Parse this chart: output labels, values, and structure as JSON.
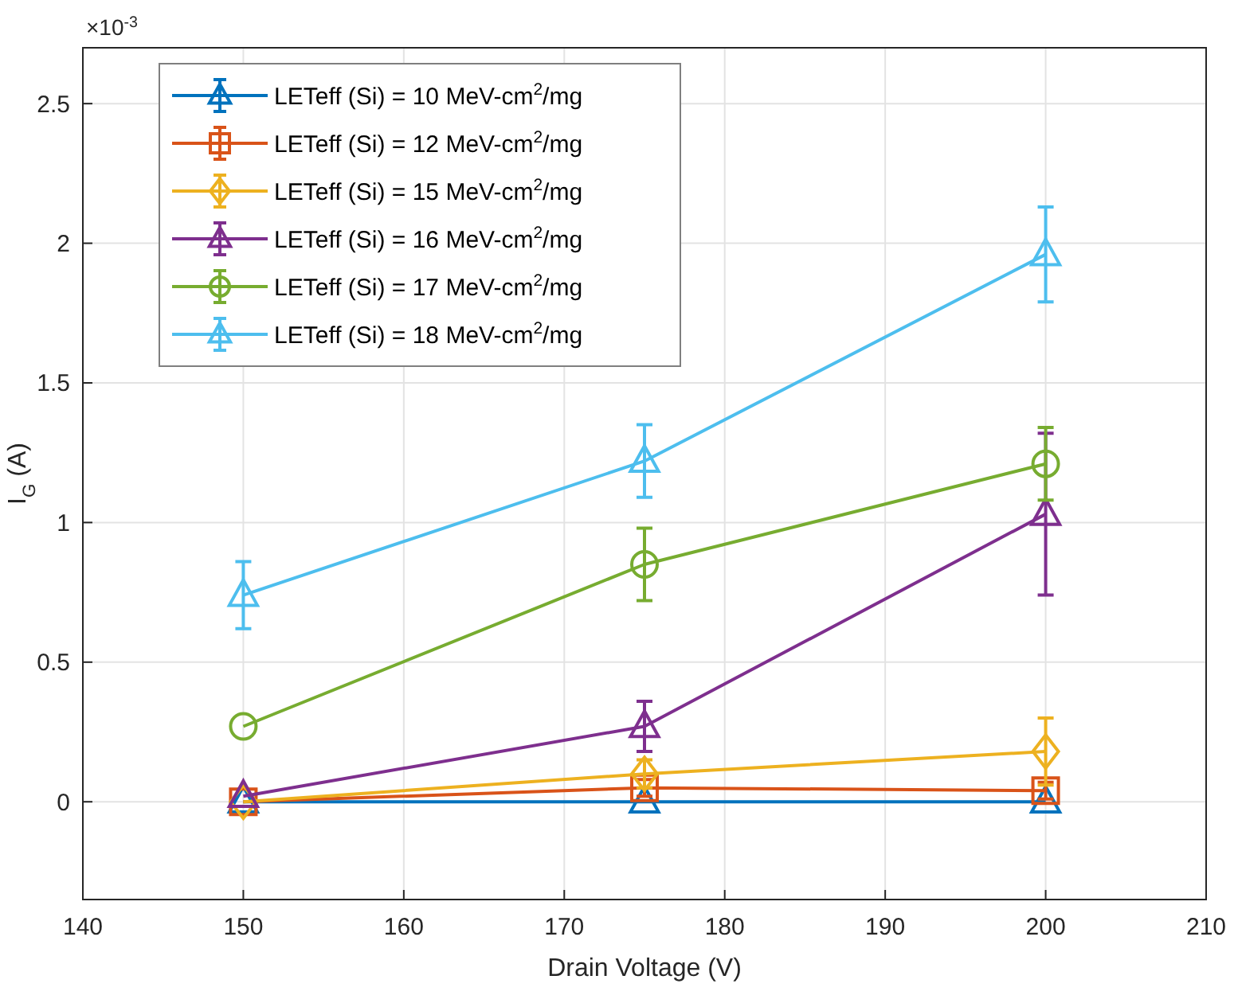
{
  "chart_data": {
    "type": "line",
    "xlabel": "Drain Voltage (V)",
    "ylabel": "I$_{G}$ (A)",
    "annotations": [
      "×10$^{-3}$"
    ],
    "x": [
      150,
      175,
      200
    ],
    "xlim": [
      140,
      210
    ],
    "xticks": [
      140,
      150,
      160,
      170,
      180,
      190,
      200,
      210
    ],
    "ylim": [
      -0.35,
      2.7
    ],
    "yticks": [
      0,
      0.5,
      1,
      1.5,
      2,
      2.5
    ],
    "grid": true,
    "legend": "top left",
    "series": [
      {
        "name": "LETeff (Si) = 10 MeV-cm$^{2}$/mg",
        "color": "#0072bd",
        "marker": "triangle",
        "values": [
          0,
          0,
          0
        ]
      },
      {
        "name": "LETeff (Si) = 12 MeV-cm$^{2}$/mg",
        "color": "#d95319",
        "marker": "square",
        "values": [
          0,
          0.05,
          0.04
        ],
        "errors": [
          null,
          0.03,
          0.03
        ]
      },
      {
        "name": "LETeff (Si) = 15 MeV-cm$^{2}$/mg",
        "color": "#edb120",
        "marker": "diamond",
        "values": [
          0,
          0.1,
          0.18
        ],
        "errors": [
          null,
          0.05,
          0.12
        ]
      },
      {
        "name": "LETeff (Si) = 16 MeV-cm$^{2}$/mg",
        "color": "#7e2f8e",
        "marker": "triangle",
        "values": [
          0.02,
          0.27,
          1.03
        ],
        "errors": [
          null,
          0.09,
          0.29
        ]
      },
      {
        "name": "LETeff (Si) = 17 MeV-cm$^{2}$/mg",
        "color": "#77ac30",
        "marker": "circle",
        "values": [
          0.27,
          0.85,
          1.21
        ],
        "errors": [
          null,
          0.13,
          0.13
        ]
      },
      {
        "name": "LETeff (Si) = 18 MeV-cm$^{2}$/mg",
        "color": "#4dbeee",
        "marker": "triangle",
        "values": [
          0.74,
          1.22,
          1.96
        ],
        "errors": [
          0.12,
          0.13,
          0.17
        ]
      }
    ]
  }
}
